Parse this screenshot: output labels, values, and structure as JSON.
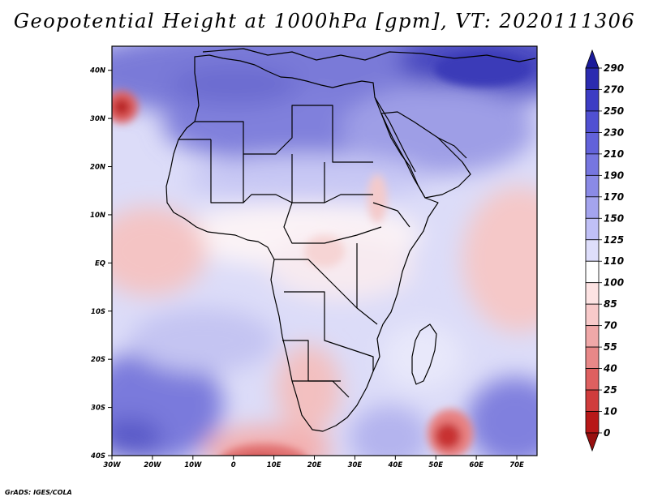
{
  "title": "Geopotential Height at 1000hPa [gpm], VT: 2020111306",
  "footer": "GrADS: IGES/COLA",
  "map": {
    "variable": "Geopotential Height",
    "level": "1000hPa",
    "units": "gpm",
    "valid_time": "2020111306",
    "lon_range": [
      -30,
      75
    ],
    "lat_range": [
      -40,
      45
    ],
    "lat_ticks": [
      {
        "value": 40,
        "label": "40N"
      },
      {
        "value": 30,
        "label": "30N"
      },
      {
        "value": 20,
        "label": "20N"
      },
      {
        "value": 10,
        "label": "10N"
      },
      {
        "value": 0,
        "label": "EQ"
      },
      {
        "value": -10,
        "label": "10S"
      },
      {
        "value": -20,
        "label": "20S"
      },
      {
        "value": -30,
        "label": "30S"
      },
      {
        "value": -40,
        "label": "40S"
      }
    ],
    "lon_ticks": [
      {
        "value": -30,
        "label": "30W"
      },
      {
        "value": -20,
        "label": "20W"
      },
      {
        "value": -10,
        "label": "10W"
      },
      {
        "value": 0,
        "label": "0"
      },
      {
        "value": 10,
        "label": "10E"
      },
      {
        "value": 20,
        "label": "20E"
      },
      {
        "value": 30,
        "label": "30E"
      },
      {
        "value": 40,
        "label": "40E"
      },
      {
        "value": 50,
        "label": "50E"
      },
      {
        "value": 60,
        "label": "60E"
      },
      {
        "value": 70,
        "label": "70E"
      }
    ]
  },
  "colorbar": {
    "levels": [
      "290",
      "270",
      "250",
      "230",
      "210",
      "190",
      "170",
      "150",
      "125",
      "110",
      "100",
      "85",
      "70",
      "55",
      "40",
      "25",
      "10",
      "0"
    ],
    "colors": [
      "#1a1a9a",
      "#2b2bb0",
      "#3c3cc4",
      "#5050d2",
      "#6262da",
      "#7676e0",
      "#8a8ae6",
      "#a4a4ee",
      "#c0c0f6",
      "#dedefb",
      "#ffffff",
      "#fde3e3",
      "#f8caca",
      "#f0a8a8",
      "#e88888",
      "#de6060",
      "#d03c3c",
      "#b81818",
      "#981010"
    ]
  }
}
